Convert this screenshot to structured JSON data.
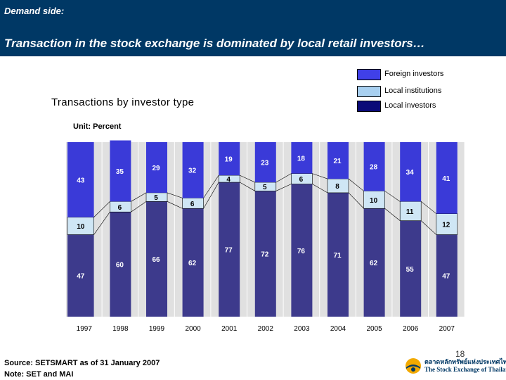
{
  "header": {
    "section": "Demand side:",
    "headline": "Transaction in the stock exchange is dominated by local retail investors…"
  },
  "chart_title": "Transactions by investor type",
  "unit_label": "Unit: Percent",
  "legend": [
    {
      "label": "Foreign investors",
      "color": "#4040e8"
    },
    {
      "label": "Local institutions",
      "color": "#a8d0f0"
    },
    {
      "label": "Local investors",
      "color": "#0a0a78"
    }
  ],
  "chart_data": {
    "type": "bar",
    "stacked": true,
    "categories": [
      "1997",
      "1998",
      "1999",
      "2000",
      "2001",
      "2002",
      "2003",
      "2004",
      "2005",
      "2006",
      "2007"
    ],
    "series": [
      {
        "name": "Local investors",
        "color": "#3d3a8c",
        "values": [
          47,
          60,
          66,
          62,
          77,
          72,
          76,
          71,
          62,
          55,
          47
        ]
      },
      {
        "name": "Local institutions",
        "color": "#cfe6f5",
        "values": [
          10,
          6,
          5,
          6,
          4,
          5,
          6,
          8,
          10,
          11,
          12
        ]
      },
      {
        "name": "Foreign investors",
        "color": "#3a3ad8",
        "values": [
          43,
          35,
          29,
          32,
          19,
          23,
          18,
          21,
          28,
          34,
          41
        ]
      }
    ],
    "ylim": [
      0,
      100
    ],
    "panel_color": "#e0e0e0"
  },
  "footer": {
    "source": "Source: SETSMART as of 31 January 2007",
    "note": "Note: SET and MAI",
    "page": "18",
    "logo_line1": "ตลาดหลักทรัพย์แห่งประเทศไทย",
    "logo_line2": "The Stock Exchange of Thailand"
  }
}
